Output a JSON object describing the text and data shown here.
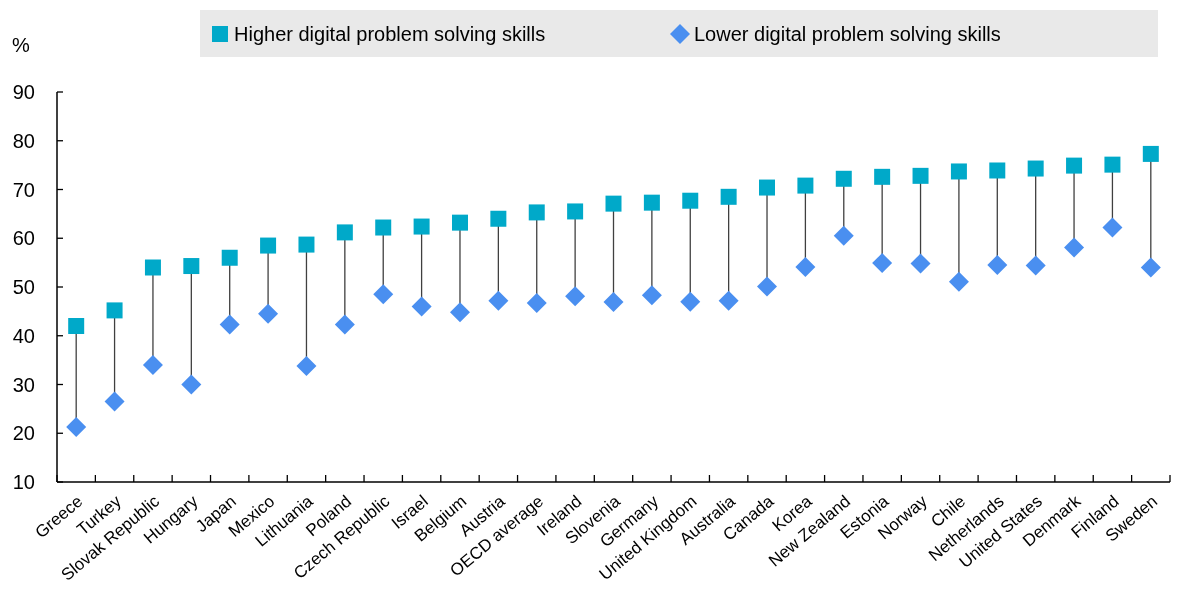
{
  "chart_data": {
    "type": "scatter",
    "ylabel": "%",
    "categories": [
      "Greece",
      "Turkey",
      "Slovak Republic",
      "Hungary",
      "Japan",
      "Mexico",
      "Lithuania",
      "Poland",
      "Czech Republic",
      "Israel",
      "Belgium",
      "Austria",
      "OECD average",
      "Ireland",
      "Slovenia",
      "Germany",
      "United Kingdom",
      "Australia",
      "Canada",
      "Korea",
      "New Zealand",
      "Estonia",
      "Norway",
      "Chile",
      "Netherlands",
      "United States",
      "Denmark",
      "Finland",
      "Sweden"
    ],
    "series": [
      {
        "name": "Higher digital problem solving skills",
        "color": "#00a9c9",
        "marker": "square",
        "values": [
          42,
          45.2,
          54,
          54.3,
          56,
          58.5,
          58.7,
          61.2,
          62.2,
          62.4,
          63.2,
          64,
          65.3,
          65.5,
          67.1,
          67.3,
          67.7,
          68.5,
          70.4,
          70.8,
          72.2,
          72.6,
          72.8,
          73.7,
          73.9,
          74.3,
          74.9,
          75.1,
          77.3
        ]
      },
      {
        "name": "Lower digital problem solving skills",
        "color": "#4a8ff0",
        "marker": "diamond",
        "values": [
          21.3,
          26.5,
          34,
          30,
          42.3,
          44.5,
          33.8,
          42.3,
          48.5,
          46,
          44.8,
          47.2,
          46.7,
          48.1,
          46.9,
          48.3,
          47,
          47.2,
          50.1,
          54.1,
          60.5,
          54.9,
          54.8,
          51.1,
          54.5,
          54.4,
          58.1,
          62.2,
          54
        ]
      }
    ],
    "ylim": [
      10,
      90
    ],
    "yticks": [
      10,
      20,
      30,
      40,
      50,
      60,
      70,
      80,
      90
    ],
    "grid": false,
    "legend": "top"
  }
}
